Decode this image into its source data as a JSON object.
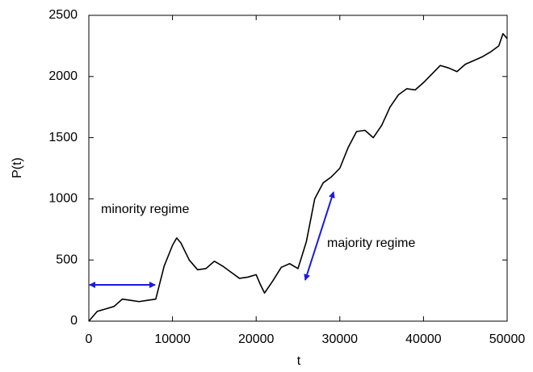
{
  "chart_data": {
    "type": "line",
    "x_label": "t",
    "y_label": "P(t)",
    "x": [
      0,
      1000,
      2000,
      3000,
      4000,
      5000,
      6000,
      7000,
      8000,
      9000,
      10000,
      10500,
      11000,
      12000,
      13000,
      14000,
      15000,
      16000,
      17000,
      18000,
      19000,
      20000,
      20500,
      21000,
      22000,
      23000,
      24000,
      25000,
      26000,
      27000,
      28000,
      29000,
      30000,
      31000,
      32000,
      33000,
      34000,
      35000,
      36000,
      37000,
      38000,
      39000,
      40000,
      41000,
      42000,
      43000,
      44000,
      45000,
      46000,
      47000,
      48000,
      49000,
      49500,
      50000
    ],
    "series": [
      {
        "color": "#000000",
        "values": [
          0,
          80,
          100,
          120,
          180,
          170,
          160,
          170,
          180,
          450,
          620,
          680,
          640,
          500,
          420,
          430,
          490,
          450,
          400,
          350,
          360,
          380,
          300,
          230,
          330,
          440,
          470,
          430,
          650,
          1000,
          1130,
          1180,
          1250,
          1420,
          1550,
          1560,
          1500,
          1600,
          1750,
          1850,
          1900,
          1890,
          1950,
          2020,
          2090,
          2070,
          2040,
          2100,
          2130,
          2160,
          2200,
          2250,
          2350,
          2310
        ]
      }
    ],
    "xlim": [
      0,
      50000
    ],
    "xticks": [
      0,
      10000,
      20000,
      30000,
      40000,
      50000
    ],
    "ylim": [
      0,
      2500
    ],
    "yticks": [
      0,
      500,
      1000,
      1500,
      2000,
      2500
    ],
    "annotations": [
      "minority regime",
      "majority regime"
    ],
    "annotation_color": "#1a1adf"
  }
}
